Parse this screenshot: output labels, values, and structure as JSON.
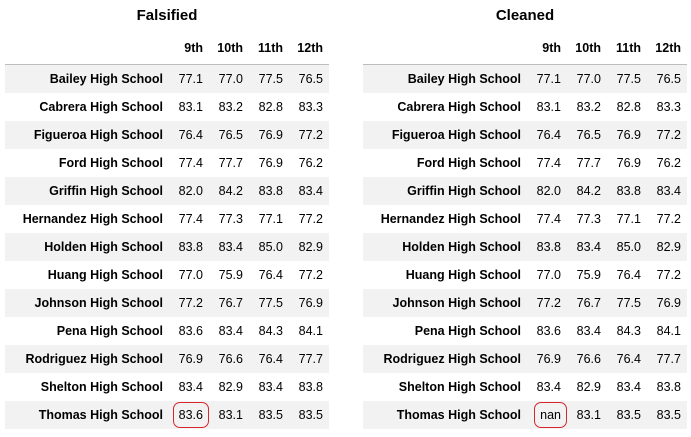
{
  "left_panel": {
    "title": "Falsified",
    "columns": [
      "9th",
      "10th",
      "11th",
      "12th"
    ],
    "rows": [
      {
        "school": "Bailey High School",
        "values": [
          "77.1",
          "77.0",
          "77.5",
          "76.5"
        ]
      },
      {
        "school": "Cabrera High School",
        "values": [
          "83.1",
          "83.2",
          "82.8",
          "83.3"
        ]
      },
      {
        "school": "Figueroa High School",
        "values": [
          "76.4",
          "76.5",
          "76.9",
          "77.2"
        ]
      },
      {
        "school": "Ford High School",
        "values": [
          "77.4",
          "77.7",
          "76.9",
          "76.2"
        ]
      },
      {
        "school": "Griffin High School",
        "values": [
          "82.0",
          "84.2",
          "83.8",
          "83.4"
        ]
      },
      {
        "school": "Hernandez High School",
        "values": [
          "77.4",
          "77.3",
          "77.1",
          "77.2"
        ]
      },
      {
        "school": "Holden High School",
        "values": [
          "83.8",
          "83.4",
          "85.0",
          "82.9"
        ]
      },
      {
        "school": "Huang High School",
        "values": [
          "77.0",
          "75.9",
          "76.4",
          "77.2"
        ]
      },
      {
        "school": "Johnson High School",
        "values": [
          "77.2",
          "76.7",
          "77.5",
          "76.9"
        ]
      },
      {
        "school": "Pena High School",
        "values": [
          "83.6",
          "83.4",
          "84.3",
          "84.1"
        ]
      },
      {
        "school": "Rodriguez High School",
        "values": [
          "76.9",
          "76.6",
          "76.4",
          "77.7"
        ]
      },
      {
        "school": "Shelton High School",
        "values": [
          "83.4",
          "82.9",
          "83.4",
          "83.8"
        ]
      },
      {
        "school": "Thomas High School",
        "values": [
          "83.6",
          "83.1",
          "83.5",
          "83.5"
        ]
      }
    ]
  },
  "right_panel": {
    "title": "Cleaned",
    "columns": [
      "9th",
      "10th",
      "11th",
      "12th"
    ],
    "rows": [
      {
        "school": "Bailey High School",
        "values": [
          "77.1",
          "77.0",
          "77.5",
          "76.5"
        ]
      },
      {
        "school": "Cabrera High School",
        "values": [
          "83.1",
          "83.2",
          "82.8",
          "83.3"
        ]
      },
      {
        "school": "Figueroa High School",
        "values": [
          "76.4",
          "76.5",
          "76.9",
          "77.2"
        ]
      },
      {
        "school": "Ford High School",
        "values": [
          "77.4",
          "77.7",
          "76.9",
          "76.2"
        ]
      },
      {
        "school": "Griffin High School",
        "values": [
          "82.0",
          "84.2",
          "83.8",
          "83.4"
        ]
      },
      {
        "school": "Hernandez High School",
        "values": [
          "77.4",
          "77.3",
          "77.1",
          "77.2"
        ]
      },
      {
        "school": "Holden High School",
        "values": [
          "83.8",
          "83.4",
          "85.0",
          "82.9"
        ]
      },
      {
        "school": "Huang High School",
        "values": [
          "77.0",
          "75.9",
          "76.4",
          "77.2"
        ]
      },
      {
        "school": "Johnson High School",
        "values": [
          "77.2",
          "76.7",
          "77.5",
          "76.9"
        ]
      },
      {
        "school": "Pena High School",
        "values": [
          "83.6",
          "83.4",
          "84.3",
          "84.1"
        ]
      },
      {
        "school": "Rodriguez High School",
        "values": [
          "76.9",
          "76.6",
          "76.4",
          "77.7"
        ]
      },
      {
        "school": "Shelton High School",
        "values": [
          "83.4",
          "82.9",
          "83.4",
          "83.8"
        ]
      },
      {
        "school": "Thomas High School",
        "values": [
          "nan",
          "83.1",
          "83.5",
          "83.5"
        ]
      }
    ]
  },
  "highlight": {
    "color": "#d8262e",
    "row": 12,
    "col": 0
  }
}
